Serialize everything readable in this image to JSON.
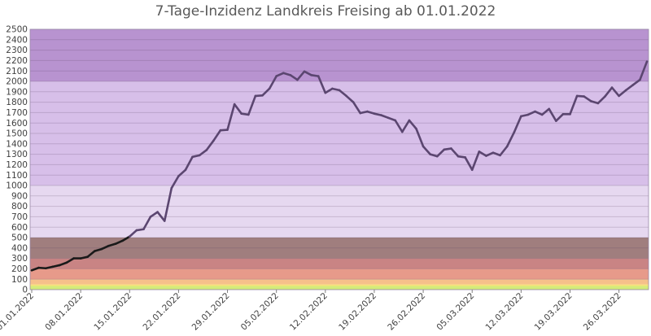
{
  "chart_data": {
    "type": "line",
    "title": "7-Tage-Inzidenz Landkreis Freising ab 01.01.2022",
    "xlabel": "",
    "ylabel": "",
    "ylim": [
      0,
      2500
    ],
    "ytick_step": 100,
    "x_tick_labels": [
      "01.01.2022",
      "08.01.2022",
      "15.01.2022",
      "22.01.2022",
      "29.01.2022",
      "05.02.2022",
      "12.02.2022",
      "19.02.2022",
      "26.02.2022",
      "05.03.2022",
      "12.03.2022",
      "19.03.2022",
      "26.03.2022"
    ],
    "grid": true,
    "legend": "none",
    "background_bands": [
      {
        "from": 0,
        "to": 35,
        "color": "#d4ec7a"
      },
      {
        "from": 35,
        "to": 50,
        "color": "#f6e27a"
      },
      {
        "from": 50,
        "to": 100,
        "color": "#f6c08a"
      },
      {
        "from": 100,
        "to": 200,
        "color": "#e79a8a"
      },
      {
        "from": 200,
        "to": 300,
        "color": "#c98484"
      },
      {
        "from": 300,
        "to": 500,
        "color": "#a07e7e"
      },
      {
        "from": 500,
        "to": 1000,
        "color": "#e6d8f0"
      },
      {
        "from": 1000,
        "to": 2000,
        "color": "#d7bfe9"
      },
      {
        "from": 2000,
        "to": 2500,
        "color": "#b893d0"
      }
    ],
    "series": [
      {
        "color": "#5b4670",
        "low_color": "#1a1a1a",
        "values": [
          185,
          210,
          205,
          220,
          235,
          260,
          300,
          300,
          315,
          370,
          390,
          420,
          440,
          470,
          510,
          570,
          580,
          700,
          745,
          660,
          975,
          1090,
          1150,
          1275,
          1290,
          1340,
          1430,
          1530,
          1535,
          1780,
          1690,
          1680,
          1860,
          1865,
          1930,
          2050,
          2080,
          2060,
          2015,
          2095,
          2060,
          2050,
          1890,
          1930,
          1915,
          1860,
          1800,
          1695,
          1710,
          1690,
          1675,
          1650,
          1625,
          1515,
          1625,
          1545,
          1375,
          1300,
          1280,
          1345,
          1355,
          1280,
          1270,
          1150,
          1325,
          1285,
          1315,
          1290,
          1375,
          1510,
          1665,
          1680,
          1710,
          1680,
          1735,
          1620,
          1685,
          1685,
          1860,
          1855,
          1810,
          1790,
          1855,
          1940,
          1860,
          1915,
          1965,
          2015,
          2190
        ]
      }
    ]
  }
}
